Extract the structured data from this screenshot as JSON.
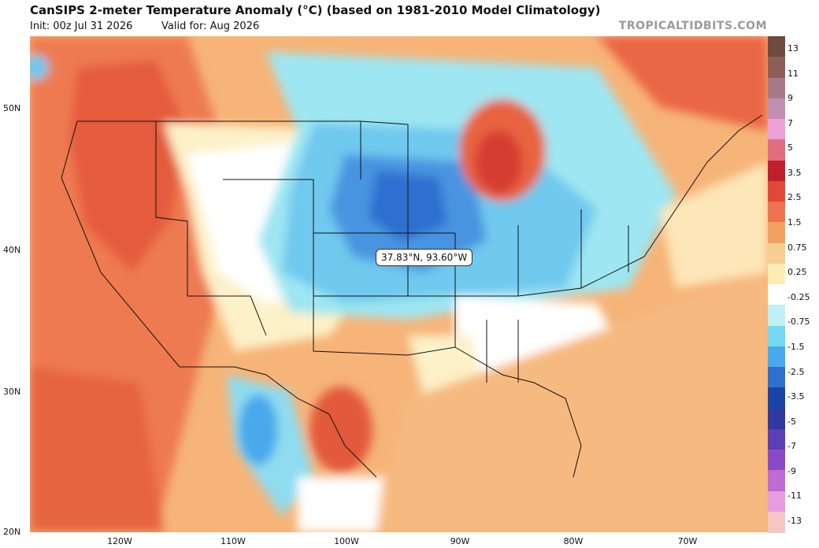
{
  "header": {
    "title": "CanSIPS 2-meter Temperature Anomaly (°C) (based on 1981-2010 Model Climatology)",
    "init": "Init: 00z Jul 31 2026",
    "valid": "Valid for: Aug 2026",
    "brand": "TROPICALTIDBITS.COM"
  },
  "axes": {
    "lat_labels": [
      "50N",
      "40N",
      "30N",
      "20N"
    ],
    "lon_labels": [
      "120W",
      "110W",
      "100W",
      "90W",
      "80W",
      "70W"
    ]
  },
  "colorbar": {
    "labels": [
      "13",
      "11",
      "9",
      "7",
      "5",
      "3.5",
      "2.5",
      "1.5",
      "0.75",
      "0.25",
      "-0.25",
      "-0.75",
      "-1.5",
      "-2.5",
      "-3.5",
      "-5",
      "-7",
      "-9",
      "-11",
      "-13"
    ],
    "colors": [
      "#6e4a3f",
      "#8b5e58",
      "#a57a86",
      "#c28fb1",
      "#e9a1d6",
      "#e16d7e",
      "#c0202e",
      "#e0483a",
      "#ee7350",
      "#f3a264",
      "#f8cd8f",
      "#fdeeb6",
      "#ffffff",
      "#bff1f4",
      "#73d8f0",
      "#4aa9ec",
      "#2f6fd0",
      "#1a45a8",
      "#2e3a9f",
      "#5a3fb8",
      "#8a4ac6",
      "#c06ad6",
      "#e79cdf",
      "#f5c6c6"
    ]
  },
  "tooltip": {
    "text": "37.83°N, 93.60°W"
  }
}
